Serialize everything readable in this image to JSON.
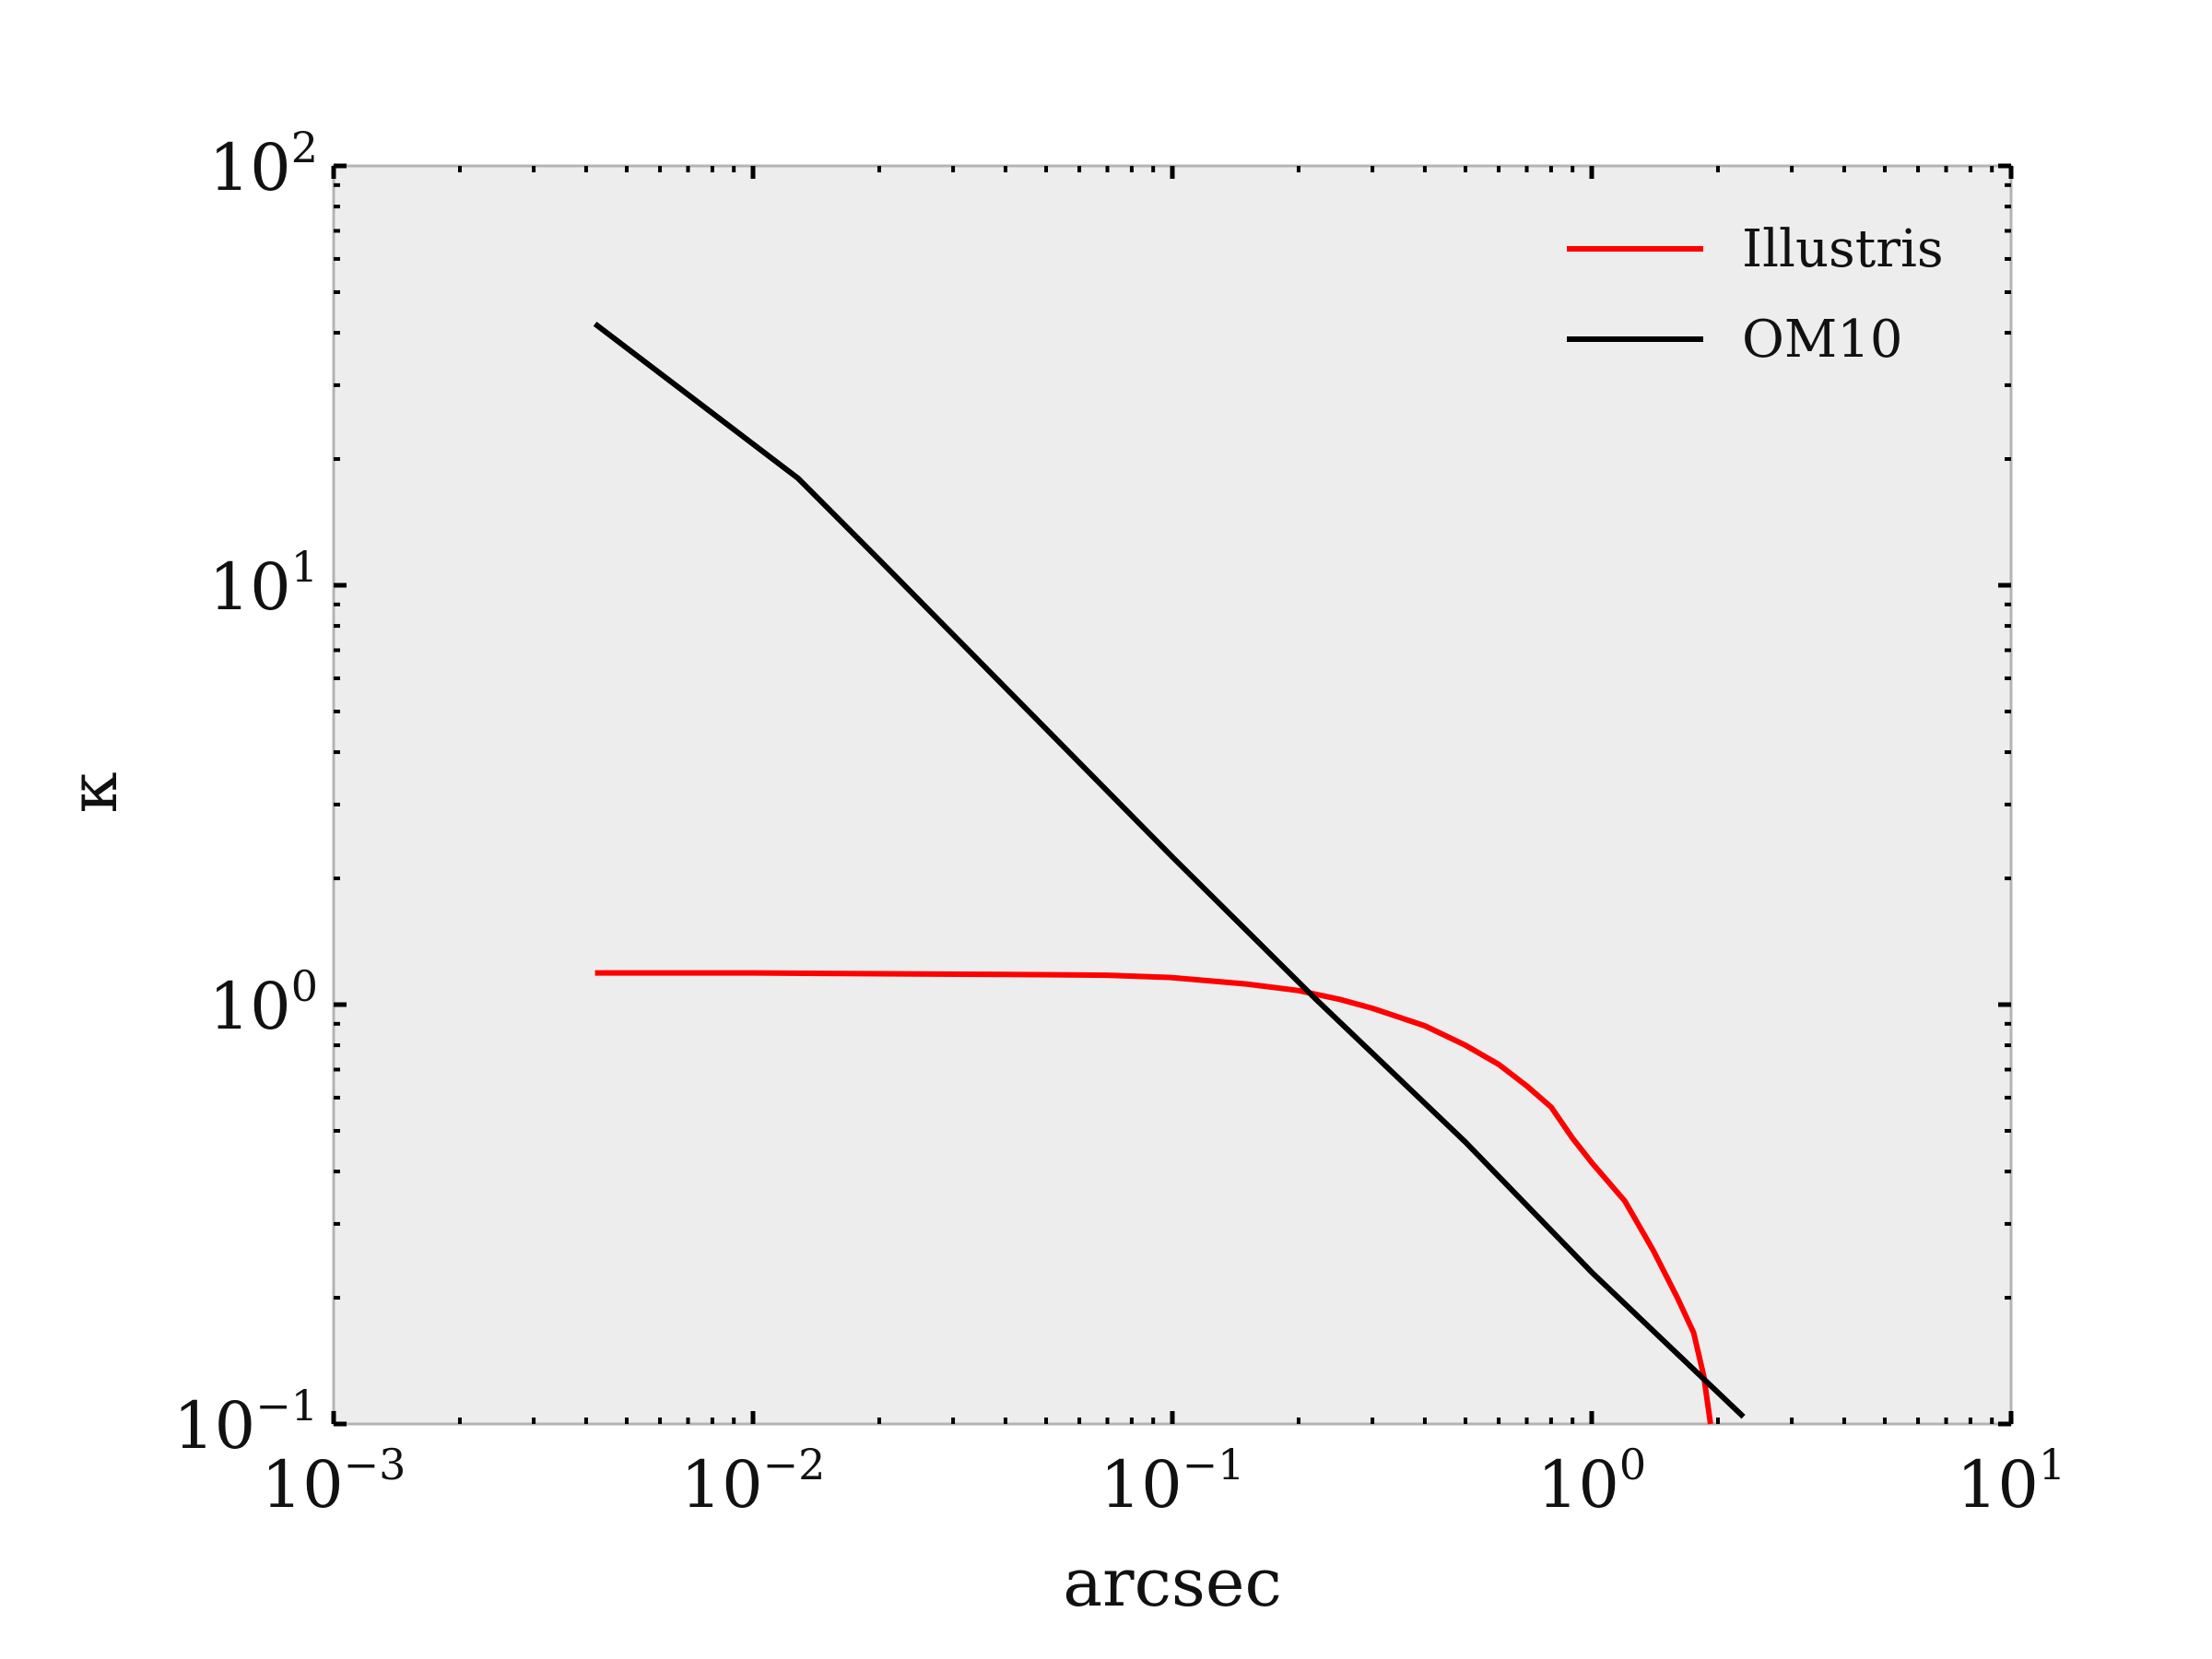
{
  "chart_data": {
    "type": "line",
    "title": "",
    "xlabel": "arcsec",
    "ylabel": "κ",
    "xscale": "log",
    "yscale": "log",
    "xlim": [
      0.001,
      10
    ],
    "ylim": [
      0.1,
      100
    ],
    "x_ticks": [
      {
        "base": "10",
        "exp": "−3",
        "value": 0.001
      },
      {
        "base": "10",
        "exp": "−2",
        "value": 0.01
      },
      {
        "base": "10",
        "exp": "−1",
        "value": 0.1
      },
      {
        "base": "10",
        "exp": "0",
        "value": 1
      },
      {
        "base": "10",
        "exp": "1",
        "value": 10
      }
    ],
    "y_ticks": [
      {
        "base": "10",
        "exp": "−1",
        "value": 0.1
      },
      {
        "base": "10",
        "exp": "0",
        "value": 1
      },
      {
        "base": "10",
        "exp": "1",
        "value": 10
      },
      {
        "base": "10",
        "exp": "2",
        "value": 100
      }
    ],
    "grid": false,
    "background_color": "#ededed",
    "legend_position": "top-right",
    "series": [
      {
        "name": "Illustris",
        "color": "#ff0000",
        "points": [
          [
            0.0042,
            1.19
          ],
          [
            0.01,
            1.19
          ],
          [
            0.02,
            1.185
          ],
          [
            0.04,
            1.18
          ],
          [
            0.07,
            1.175
          ],
          [
            0.1,
            1.16
          ],
          [
            0.15,
            1.12
          ],
          [
            0.2,
            1.08
          ],
          [
            0.25,
            1.03
          ],
          [
            0.3,
            0.98
          ],
          [
            0.4,
            0.89
          ],
          [
            0.5,
            0.8
          ],
          [
            0.6,
            0.72
          ],
          [
            0.7,
            0.64
          ],
          [
            0.8,
            0.57
          ],
          [
            0.9,
            0.48
          ],
          [
            1.0,
            0.42
          ],
          [
            1.2,
            0.34
          ],
          [
            1.4,
            0.26
          ],
          [
            1.6,
            0.2
          ],
          [
            1.75,
            0.165
          ],
          [
            1.85,
            0.13
          ],
          [
            1.92,
            0.1
          ]
        ]
      },
      {
        "name": "OM10",
        "color": "#000000",
        "points": [
          [
            0.0042,
            42
          ],
          [
            0.0128,
            18
          ],
          [
            0.02,
            11.5
          ],
          [
            0.1,
            2.25
          ],
          [
            0.22,
            1.03
          ],
          [
            0.5,
            0.47
          ],
          [
            1.0,
            0.23
          ],
          [
            2.3,
            0.104
          ]
        ]
      }
    ]
  }
}
